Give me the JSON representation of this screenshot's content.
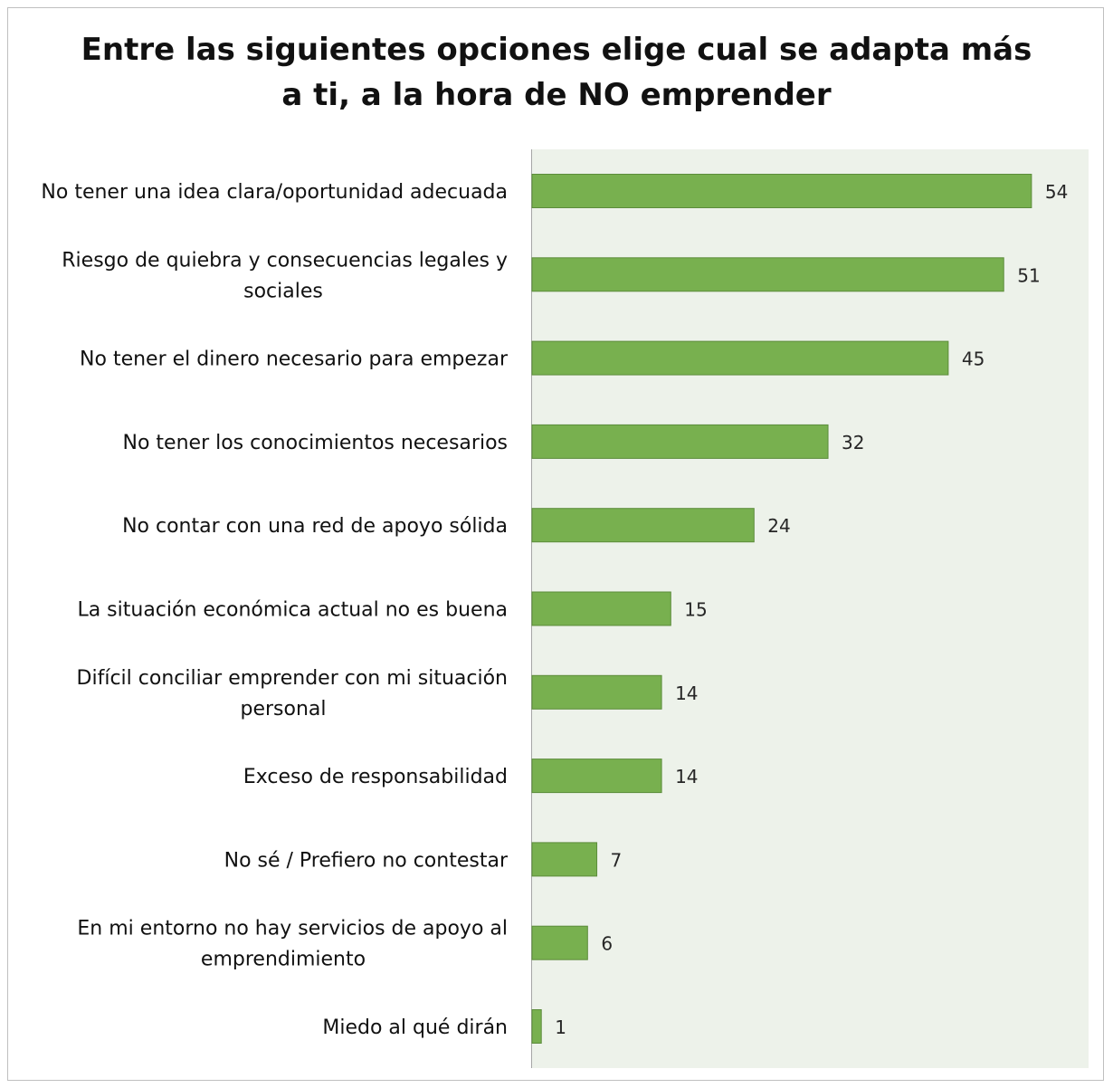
{
  "chart_data": {
    "type": "bar",
    "orientation": "horizontal",
    "title": "Entre las siguientes opciones elige cual se adapta más a ti, a la hora de NO emprender",
    "title_lines": [
      "Entre las siguientes opciones elige cual se adapta más",
      "a ti, a la hora de NO emprender"
    ],
    "categories": [
      "No tener una idea clara/oportunidad adecuada",
      "Riesgo de quiebra y consecuencias legales y sociales",
      "No tener el dinero necesario para empezar",
      "No tener los conocimientos necesarios",
      "No contar con una red de apoyo sólida",
      "La situación económica actual no es buena",
      "Difícil conciliar emprender con mi situación personal",
      "Exceso de responsabilidad",
      "No sé / Prefiero no contestar",
      "En mi entorno no hay servicios de apoyo al emprendimiento",
      "Miedo al qué dirán"
    ],
    "category_lines": [
      [
        "No tener una idea clara/oportunidad adecuada"
      ],
      [
        "Riesgo de quiebra y consecuencias legales y",
        "sociales"
      ],
      [
        "No tener el dinero necesario para empezar"
      ],
      [
        "No tener los conocimientos necesarios"
      ],
      [
        "No contar con una red de apoyo sólida"
      ],
      [
        "La situación económica actual no es buena"
      ],
      [
        "Difícil conciliar emprender con mi situación",
        "personal"
      ],
      [
        "Exceso de responsabilidad"
      ],
      [
        "No sé / Prefiero no contestar"
      ],
      [
        "En mi entorno no hay servicios de apoyo al",
        "emprendimiento"
      ],
      [
        "Miedo al qué dirán"
      ]
    ],
    "values": [
      54,
      51,
      45,
      32,
      24,
      15,
      14,
      14,
      7,
      6,
      1
    ],
    "xlim": [
      0,
      60
    ],
    "data_labels": true,
    "grid": false,
    "legend": "none",
    "colors": {
      "bar": "#78b04f",
      "bar_border": "#5c8c3b",
      "plot_background": "#edf2ea"
    }
  }
}
